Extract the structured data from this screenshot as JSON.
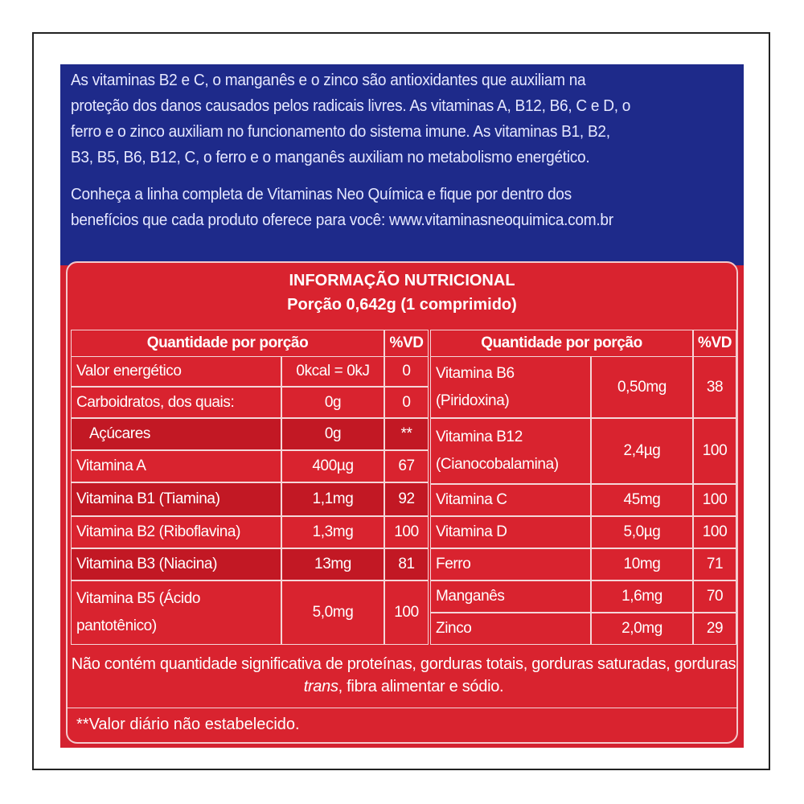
{
  "intro": {
    "paragraph1": [
      "As vitaminas B2 e C, o manganês e o zinco são antioxidantes que auxiliam na",
      "proteção dos danos causados pelos radicais livres. As vitaminas A, B12, B6, C e D, o",
      "ferro e o zinco auxiliam no funcionamento do sistema imune. As vitaminas B1, B2,",
      "B3, B5, B6, B12, C, o ferro e o manganês auxiliam no metabolismo energético."
    ],
    "paragraph2": [
      "Conheça a linha completa de Vitaminas Neo Química e fique por dentro dos",
      "benefícios que cada produto oferece para você: www.vitaminasneoquimica.com.br"
    ]
  },
  "table": {
    "title": "INFORMAÇÃO NUTRICIONAL",
    "serving": "Porção 0,642g (1 comprimido)",
    "headers": [
      "Quantidade por porção",
      "%VD",
      "Quantidade por porção",
      "%VD"
    ],
    "left_rows": [
      {
        "name": "Valor energético",
        "amount": "0kcal = 0kJ",
        "vd": "0"
      },
      {
        "name": "Carboidratos, dos quais:",
        "amount": "0g",
        "vd": "0"
      },
      {
        "name": "Açúcares",
        "amount": "0g",
        "vd": "**"
      },
      {
        "name": "Vitamina A",
        "amount": "400µg",
        "vd": "67"
      },
      {
        "name": "Vitamina B1 (Tiamina)",
        "amount": "1,1mg",
        "vd": "92"
      },
      {
        "name": "Vitamina B2 (Riboflavina)",
        "amount": "1,3mg",
        "vd": "100"
      },
      {
        "name": "Vitamina B3 (Niacina)",
        "amount": "13mg",
        "vd": "81"
      },
      {
        "name": [
          "Vitamina B5 (Ácido",
          "pantotênico)"
        ],
        "amount": "5,0mg",
        "vd": "100"
      }
    ],
    "right_rows": [
      {
        "name": [
          "Vitamina B6",
          "(Piridoxina)"
        ],
        "amount": "0,50mg",
        "vd": "38"
      },
      {
        "name": [
          "Vitamina B12",
          "(Cianocobalamina)"
        ],
        "amount": "2,4µg",
        "vd": "100"
      },
      {
        "name": "Vitamina C",
        "amount": "45mg",
        "vd": "100"
      },
      {
        "name": "Vitamina D",
        "amount": "5,0µg",
        "vd": "100"
      },
      {
        "name": "Ferro",
        "amount": "10mg",
        "vd": "71"
      },
      {
        "name": "Manganês",
        "amount": "1,6mg",
        "vd": "70"
      },
      {
        "name": "Zinco",
        "amount": "2,0mg",
        "vd": "29"
      }
    ],
    "footnote": [
      "Não contém quantidade significativa de proteínas, gorduras totais, gorduras saturadas, gorduras ",
      "trans",
      ", fibra alimentar e sódio."
    ],
    "note": "**Valor diário não estabelecido."
  }
}
